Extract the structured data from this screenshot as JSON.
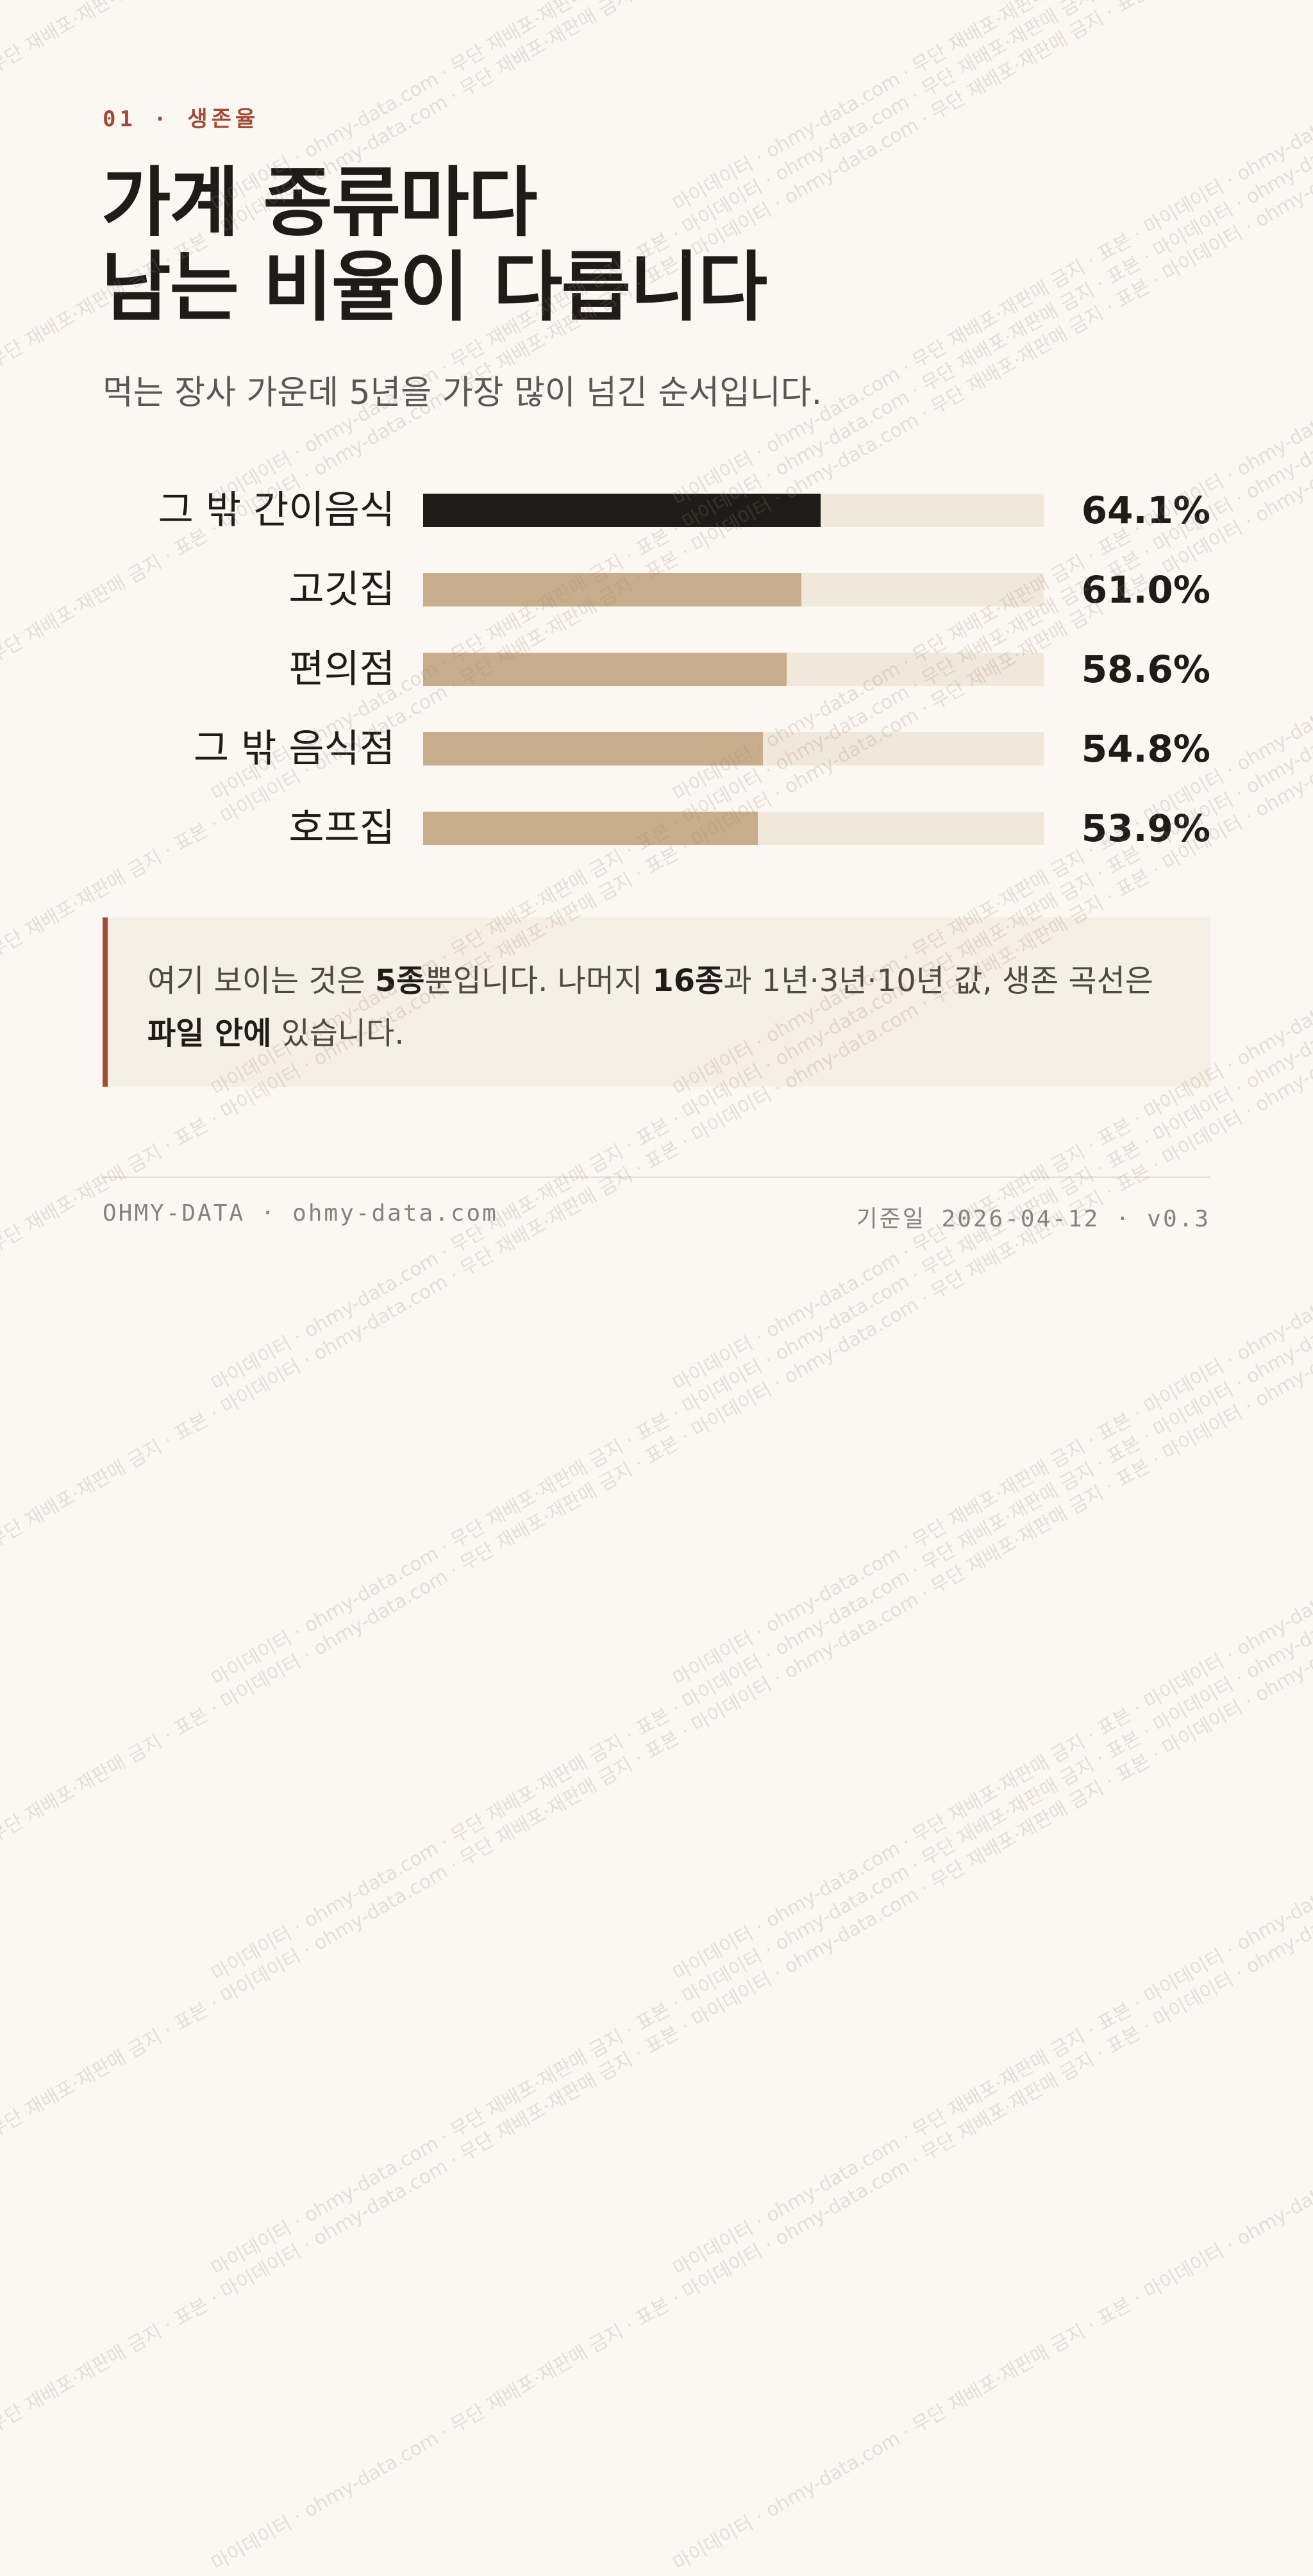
{
  "eyebrow": "01 · 생존율",
  "title_lines": [
    "가계 종류마다",
    "남는 비율이 다릅니다"
  ],
  "subtitle": "먹는 장사 가운데 5년을 가장 많이 넘긴 순서입니다.",
  "chart_data": {
    "type": "bar",
    "orientation": "horizontal",
    "categories": [
      "그 밖 간이음식",
      "고깃집",
      "편의점",
      "그 밖 음식점",
      "호프집"
    ],
    "values": [
      64.1,
      61.0,
      58.6,
      54.8,
      53.9
    ],
    "value_labels": [
      "64.1%",
      "61.0%",
      "58.6%",
      "54.8%",
      "53.9%"
    ],
    "xlim": [
      0,
      100
    ],
    "highlight_index": 0,
    "grid": false
  },
  "colors": {
    "accent": "#a24a36",
    "bar_highlight": "#1f1b18",
    "bar": "#c8ad8c",
    "track": "#f1e8dc",
    "background": "#fbf8f3"
  },
  "note": {
    "parts": [
      {
        "text": "여기 보이는 것은 ",
        "bold": false
      },
      {
        "text": "5종",
        "bold": true
      },
      {
        "text": "뿐입니다. 나머지 ",
        "bold": false
      },
      {
        "text": "16종",
        "bold": true
      },
      {
        "text": "과 1년·3년·10년 값, 생존 곡선은 ",
        "bold": false
      },
      {
        "text": "파일 안에",
        "bold": true
      },
      {
        "text": " 있습니다.",
        "bold": false
      }
    ]
  },
  "footer": {
    "left": "OHMY-DATA · ohmy-data.com",
    "right": "기준일 2026-04-12 · v0.3"
  },
  "watermark": "마이데이터 · ohmy-data.com · 무단 재배포·재판매 금지 · 표본"
}
